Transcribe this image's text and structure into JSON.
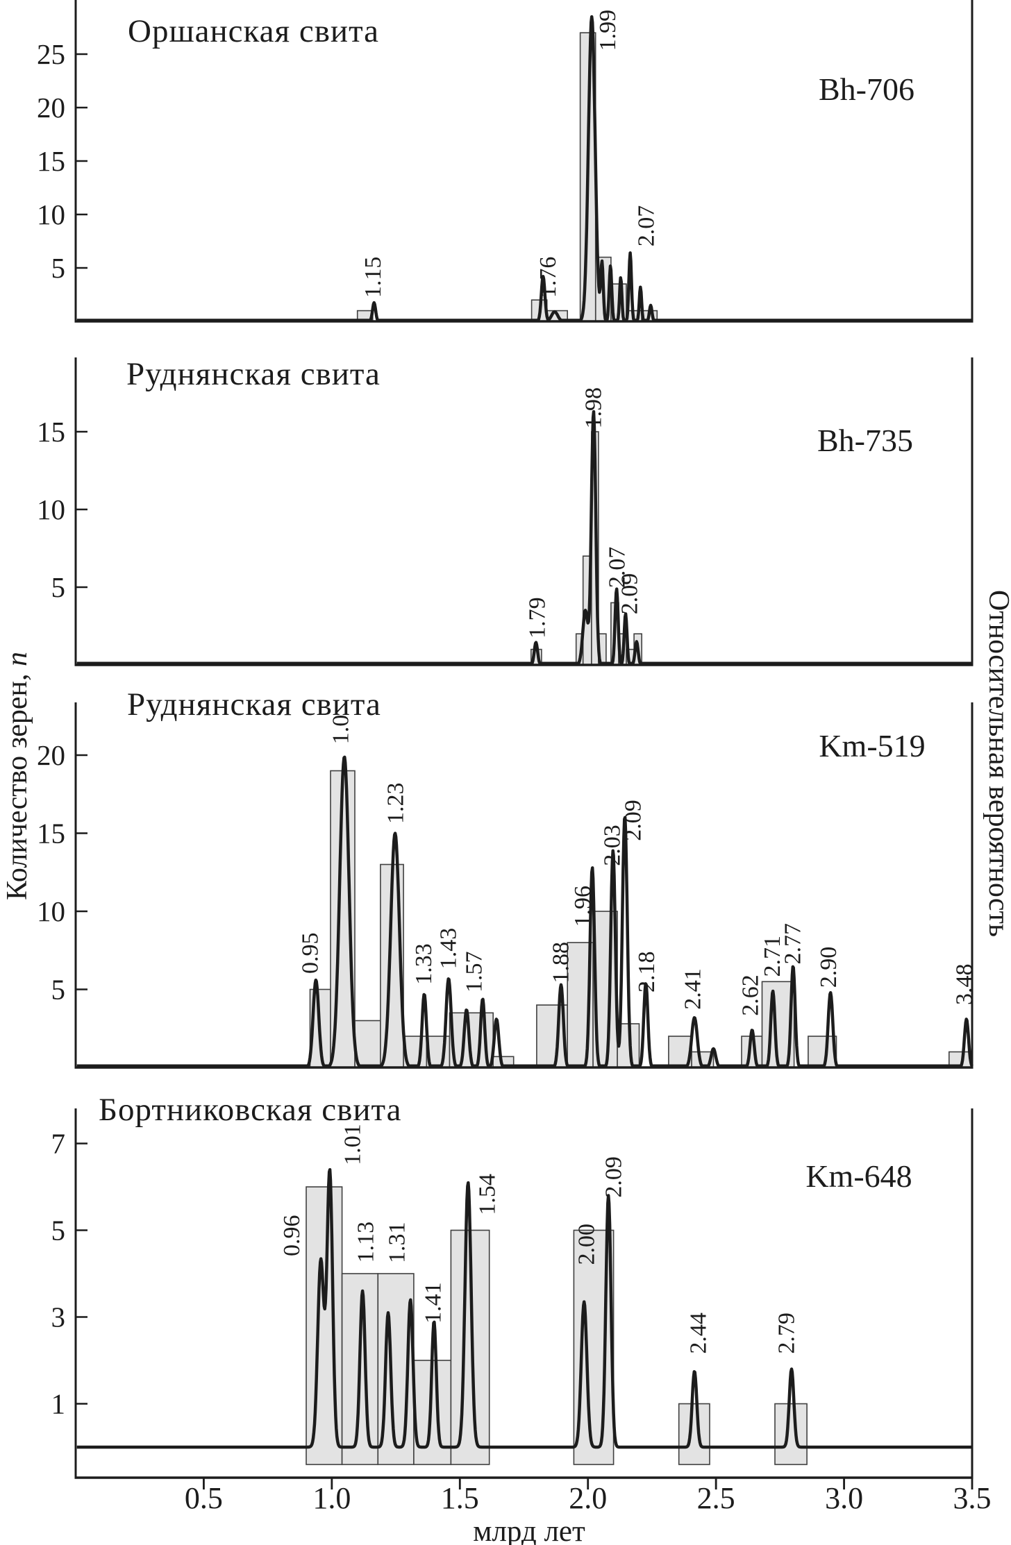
{
  "figure": {
    "x_axis": {
      "label": "млрд лет",
      "tick_labels": [
        "0.5",
        "1.0",
        "1.5",
        "2.0",
        "2.5",
        "3.0",
        "3.5"
      ],
      "tick_values": [
        0.5,
        1.0,
        1.5,
        2.0,
        2.5,
        3.0,
        3.5
      ],
      "range_ga": [
        0,
        3.5
      ]
    },
    "y_axis_left_label_text": "Количество зерен, ",
    "y_axis_left_label_var": "n",
    "y_axis_right_label": "Относительная вероятность"
  },
  "chart_data": [
    {
      "type": "bar",
      "subtype": "detrital-zircon-histogram-with-kde",
      "title": "Оршанская свита",
      "sample": "Bh-706",
      "y_ticks": [
        5,
        10,
        15,
        20,
        25
      ],
      "bars": [
        {
          "x0": 1.1,
          "x1": 1.16,
          "n": 1
        },
        {
          "x0": 1.78,
          "x1": 1.84,
          "n": 2
        },
        {
          "x0": 1.84,
          "x1": 1.92,
          "n": 1
        },
        {
          "x0": 1.97,
          "x1": 2.03,
          "n": 27
        },
        {
          "x0": 2.03,
          "x1": 2.09,
          "n": 6
        },
        {
          "x0": 2.09,
          "x1": 2.15,
          "n": 3.5
        },
        {
          "x0": 2.15,
          "x1": 2.21,
          "n": 1
        },
        {
          "x0": 2.21,
          "x1": 2.27,
          "n": 1
        }
      ],
      "kde_peaks": [
        {
          "c": 1.165,
          "a": 1.75,
          "s": 0.006
        },
        {
          "c": 1.825,
          "a": 4.2,
          "s": 0.007
        },
        {
          "c": 1.87,
          "a": 0.9,
          "s": 0.012
        },
        {
          "c": 2.015,
          "a": 28.5,
          "s": 0.013
        },
        {
          "c": 2.055,
          "a": 5.4,
          "s": 0.005
        },
        {
          "c": 2.088,
          "a": 5.2,
          "s": 0.005
        },
        {
          "c": 2.128,
          "a": 4.1,
          "s": 0.0045
        },
        {
          "c": 2.165,
          "a": 6.4,
          "s": 0.005
        },
        {
          "c": 2.205,
          "a": 3.2,
          "s": 0.0045
        },
        {
          "c": 2.245,
          "a": 1.5,
          "s": 0.005
        }
      ],
      "peak_labels": [
        {
          "text": "1.15",
          "v": 1.162,
          "a": 2.2
        },
        {
          "text": "1.76",
          "v": 1.845,
          "a": 2.2
        },
        {
          "text": "1.99",
          "v": 2.078,
          "a": 25.3
        },
        {
          "text": "2.07",
          "v": 2.228,
          "a": 7.0
        }
      ]
    },
    {
      "type": "bar",
      "subtype": "detrital-zircon-histogram-with-kde",
      "title": "Руднянская свита",
      "sample": "Bh-735",
      "y_ticks": [
        5,
        10,
        15
      ],
      "bars": [
        {
          "x0": 1.778,
          "x1": 1.819,
          "n": 1
        },
        {
          "x0": 1.954,
          "x1": 1.981,
          "n": 2
        },
        {
          "x0": 1.981,
          "x1": 2.014,
          "n": 7
        },
        {
          "x0": 2.014,
          "x1": 2.041,
          "n": 15
        },
        {
          "x0": 2.041,
          "x1": 2.071,
          "n": 2
        },
        {
          "x0": 2.09,
          "x1": 2.12,
          "n": 4
        },
        {
          "x0": 2.12,
          "x1": 2.15,
          "n": 2
        },
        {
          "x0": 2.15,
          "x1": 2.18,
          "n": 1
        },
        {
          "x0": 2.18,
          "x1": 2.21,
          "n": 2
        }
      ],
      "kde_peaks": [
        {
          "c": 1.797,
          "a": 1.45,
          "s": 0.0065
        },
        {
          "c": 1.99,
          "a": 3.5,
          "s": 0.01
        },
        {
          "c": 2.022,
          "a": 16.3,
          "s": 0.0085
        },
        {
          "c": 2.112,
          "a": 4.9,
          "s": 0.006
        },
        {
          "c": 2.147,
          "a": 3.3,
          "s": 0.0055
        },
        {
          "c": 2.19,
          "a": 1.5,
          "s": 0.006
        }
      ],
      "peak_labels": [
        {
          "text": "1.79",
          "v": 1.803,
          "a": 1.7
        },
        {
          "text": "1.98",
          "v": 2.022,
          "a": 15.2
        },
        {
          "text": "2.07",
          "v": 2.115,
          "a": 4.95
        },
        {
          "text": "2.09",
          "v": 2.163,
          "a": 3.25
        }
      ]
    },
    {
      "type": "bar",
      "subtype": "detrital-zircon-histogram-with-kde",
      "title": "Руднянская свита",
      "sample": "Km-519",
      "y_ticks": [
        5,
        10,
        15,
        20
      ],
      "bars": [
        {
          "x0": 0.915,
          "x1": 0.995,
          "n": 5
        },
        {
          "x0": 0.995,
          "x1": 1.09,
          "n": 19
        },
        {
          "x0": 1.09,
          "x1": 1.19,
          "n": 3
        },
        {
          "x0": 1.19,
          "x1": 1.28,
          "n": 13
        },
        {
          "x0": 1.28,
          "x1": 1.37,
          "n": 2
        },
        {
          "x0": 1.37,
          "x1": 1.46,
          "n": 2
        },
        {
          "x0": 1.46,
          "x1": 1.63,
          "n": 3.5
        },
        {
          "x0": 1.63,
          "x1": 1.71,
          "n": 0.7
        },
        {
          "x0": 1.8,
          "x1": 1.92,
          "n": 4
        },
        {
          "x0": 1.92,
          "x1": 2.02,
          "n": 8
        },
        {
          "x0": 2.02,
          "x1": 2.115,
          "n": 10
        },
        {
          "x0": 2.115,
          "x1": 2.2,
          "n": 2.8
        },
        {
          "x0": 2.315,
          "x1": 2.405,
          "n": 2
        },
        {
          "x0": 2.405,
          "x1": 2.49,
          "n": 1
        },
        {
          "x0": 2.6,
          "x1": 2.68,
          "n": 2
        },
        {
          "x0": 2.68,
          "x1": 2.805,
          "n": 5.5
        },
        {
          "x0": 2.86,
          "x1": 2.97,
          "n": 2
        },
        {
          "x0": 3.41,
          "x1": 3.5,
          "n": 1
        }
      ],
      "kde_peaks": [
        {
          "c": 0.938,
          "a": 5.6,
          "s": 0.011
        },
        {
          "c": 1.049,
          "a": 19.9,
          "s": 0.018
        },
        {
          "c": 1.247,
          "a": 15.0,
          "s": 0.017
        },
        {
          "c": 1.361,
          "a": 4.7,
          "s": 0.0085
        },
        {
          "c": 1.456,
          "a": 5.7,
          "s": 0.01
        },
        {
          "c": 1.526,
          "a": 3.7,
          "s": 0.009
        },
        {
          "c": 1.589,
          "a": 4.4,
          "s": 0.008
        },
        {
          "c": 1.643,
          "a": 3.1,
          "s": 0.009
        },
        {
          "c": 1.895,
          "a": 5.3,
          "s": 0.009
        },
        {
          "c": 2.017,
          "a": 12.8,
          "s": 0.009
        },
        {
          "c": 2.098,
          "a": 13.9,
          "s": 0.009
        },
        {
          "c": 2.144,
          "a": 16.1,
          "s": 0.0095
        },
        {
          "c": 2.226,
          "a": 5.4,
          "s": 0.008
        },
        {
          "c": 2.416,
          "a": 3.2,
          "s": 0.011
        },
        {
          "c": 2.49,
          "a": 1.2,
          "s": 0.009
        },
        {
          "c": 2.641,
          "a": 2.4,
          "s": 0.008
        },
        {
          "c": 2.722,
          "a": 4.9,
          "s": 0.008
        },
        {
          "c": 2.801,
          "a": 6.5,
          "s": 0.008
        },
        {
          "c": 2.947,
          "a": 4.8,
          "s": 0.009
        },
        {
          "c": 3.478,
          "a": 3.1,
          "s": 0.008
        }
      ],
      "peak_labels": [
        {
          "text": "0.95",
          "v": 0.917,
          "a": 6.0
        },
        {
          "text": "1.0",
          "v": 1.036,
          "a": 20.7
        },
        {
          "text": "1.23",
          "v": 1.25,
          "a": 15.6
        },
        {
          "text": "1.33",
          "v": 1.36,
          "a": 5.3
        },
        {
          "text": "1.43",
          "v": 1.456,
          "a": 6.3
        },
        {
          "text": "1.57",
          "v": 1.556,
          "a": 4.8
        },
        {
          "text": "1.88",
          "v": 1.895,
          "a": 5.4
        },
        {
          "text": "1.96",
          "v": 1.98,
          "a": 9.0
        },
        {
          "text": "2.03",
          "v": 2.095,
          "a": 12.9
        },
        {
          "text": "2.09",
          "v": 2.177,
          "a": 14.5
        },
        {
          "text": "2.18",
          "v": 2.23,
          "a": 4.8
        },
        {
          "text": "2.41",
          "v": 2.41,
          "a": 3.7
        },
        {
          "text": "2.62",
          "v": 2.635,
          "a": 3.3
        },
        {
          "text": "2.71",
          "v": 2.72,
          "a": 5.8
        },
        {
          "text": "2.77",
          "v": 2.8,
          "a": 6.6
        },
        {
          "text": "2.90",
          "v": 2.94,
          "a": 5.1
        },
        {
          "text": "3.48",
          "v": 3.47,
          "a": 4.0
        }
      ]
    },
    {
      "type": "bar",
      "subtype": "detrital-zircon-histogram-with-kde",
      "title": "Бортниковская свита",
      "sample": "Km-648",
      "y_ticks": [
        1,
        3,
        5,
        7
      ],
      "bars": [
        {
          "x0": 0.9,
          "x1": 1.04,
          "n": 6
        },
        {
          "x0": 1.04,
          "x1": 1.18,
          "n": 4
        },
        {
          "x0": 1.18,
          "x1": 1.32,
          "n": 4
        },
        {
          "x0": 1.32,
          "x1": 1.465,
          "n": 2
        },
        {
          "x0": 1.465,
          "x1": 1.615,
          "n": 5
        },
        {
          "x0": 1.945,
          "x1": 2.1,
          "n": 5
        },
        {
          "x0": 2.355,
          "x1": 2.475,
          "n": 1
        },
        {
          "x0": 2.73,
          "x1": 2.855,
          "n": 1
        }
      ],
      "kde_peaks": [
        {
          "c": 0.957,
          "a": 4.3,
          "s": 0.012
        },
        {
          "c": 0.992,
          "a": 6.35,
          "s": 0.011
        },
        {
          "c": 1.12,
          "a": 3.6,
          "s": 0.01
        },
        {
          "c": 1.22,
          "a": 3.1,
          "s": 0.01
        },
        {
          "c": 1.307,
          "a": 3.4,
          "s": 0.01
        },
        {
          "c": 1.399,
          "a": 2.9,
          "s": 0.009
        },
        {
          "c": 1.532,
          "a": 6.1,
          "s": 0.012
        },
        {
          "c": 1.985,
          "a": 3.35,
          "s": 0.011
        },
        {
          "c": 2.08,
          "a": 5.8,
          "s": 0.01
        },
        {
          "c": 2.416,
          "a": 1.75,
          "s": 0.009
        },
        {
          "c": 2.795,
          "a": 1.8,
          "s": 0.009
        }
      ],
      "peak_labels": [
        {
          "text": "0.96",
          "v": 0.845,
          "a": 4.4
        },
        {
          "text": "1.01",
          "v": 1.082,
          "a": 6.5
        },
        {
          "text": "1.13",
          "v": 1.133,
          "a": 4.25
        },
        {
          "text": "1.31",
          "v": 1.255,
          "a": 4.24
        },
        {
          "text": "1.41",
          "v": 1.396,
          "a": 2.85
        },
        {
          "text": "1.54",
          "v": 1.608,
          "a": 5.35
        },
        {
          "text": "2.00",
          "v": 1.995,
          "a": 4.2
        },
        {
          "text": "2.09",
          "v": 2.101,
          "a": 5.75
        },
        {
          "text": "2.44",
          "v": 2.432,
          "a": 2.15
        },
        {
          "text": "2.79",
          "v": 2.776,
          "a": 2.15
        }
      ]
    }
  ]
}
